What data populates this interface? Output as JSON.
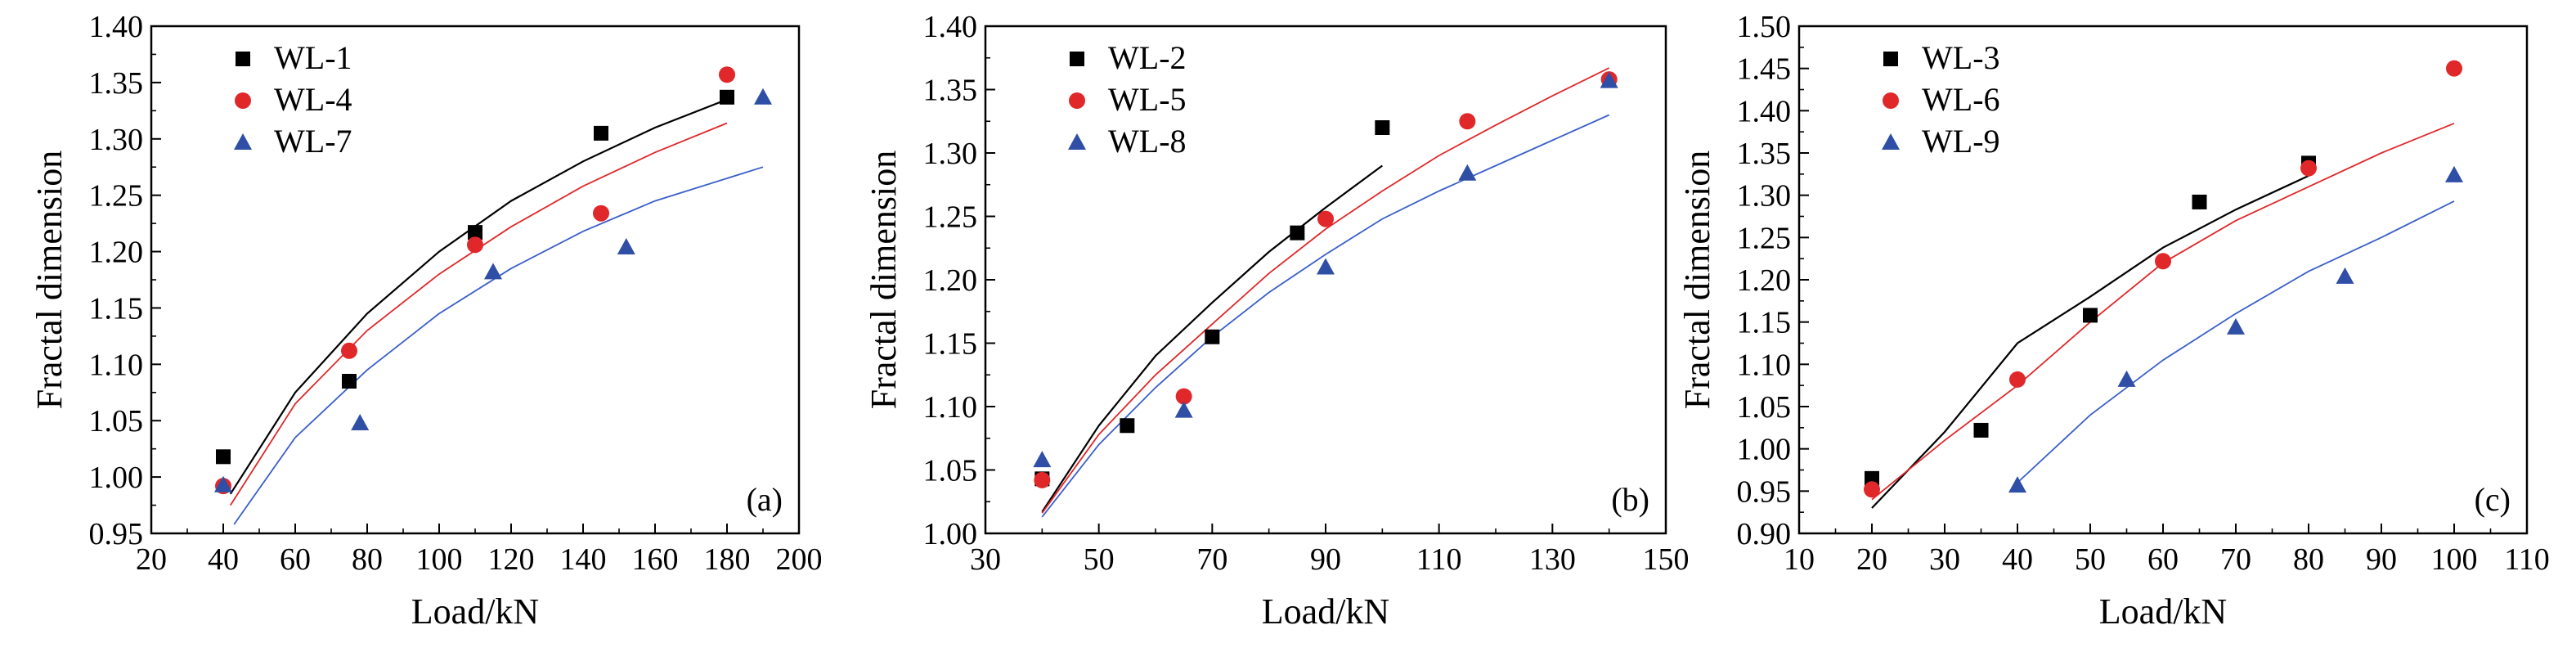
{
  "colors": {
    "series_black": "#000000",
    "series_red": "#e0282a",
    "series_blue": "#2f4fa6",
    "fit_black": "#000000",
    "fit_red": "#e0282a",
    "fit_blue": "#3a5fc8"
  },
  "chart_data": [
    {
      "type": "scatter",
      "panel": "(a)",
      "xlabel": "Load/kN",
      "ylabel": "Fractal dimension",
      "xlim": [
        20,
        200
      ],
      "ylim": [
        0.95,
        1.4
      ],
      "xticks": [
        "20",
        "40",
        "60",
        "80",
        "100",
        "120",
        "140",
        "160",
        "180",
        "200"
      ],
      "yticks": [
        "0.95",
        "1.00",
        "1.05",
        "1.10",
        "1.15",
        "1.20",
        "1.25",
        "1.30",
        "1.35",
        "1.40"
      ],
      "legend_position": "top-left",
      "series": [
        {
          "name": "WL-1",
          "marker": "square",
          "color": "#000000",
          "x": [
            40,
            75,
            110,
            145,
            180
          ],
          "y": [
            1.018,
            1.085,
            1.217,
            1.305,
            1.337
          ],
          "fit": {
            "x": [
              42,
              60,
              80,
              100,
              120,
              140,
              160,
              180
            ],
            "y": [
              0.985,
              1.075,
              1.145,
              1.2,
              1.245,
              1.28,
              1.31,
              1.335
            ]
          }
        },
        {
          "name": "WL-4",
          "marker": "circle",
          "color": "#e0282a",
          "x": [
            40,
            75,
            110,
            145,
            180
          ],
          "y": [
            0.992,
            1.112,
            1.206,
            1.234,
            1.357
          ],
          "fit": {
            "x": [
              42,
              60,
              80,
              100,
              120,
              140,
              160,
              180
            ],
            "y": [
              0.975,
              1.065,
              1.13,
              1.18,
              1.222,
              1.258,
              1.288,
              1.314
            ]
          }
        },
        {
          "name": "WL-7",
          "marker": "triangle",
          "color": "#2f4fa6",
          "x": [
            40,
            78,
            115,
            152,
            190
          ],
          "y": [
            0.993,
            1.048,
            1.182,
            1.204,
            1.337
          ],
          "fit": {
            "x": [
              43,
              60,
              80,
              100,
              120,
              140,
              160,
              190
            ],
            "y": [
              0.958,
              1.035,
              1.095,
              1.145,
              1.185,
              1.218,
              1.245,
              1.275
            ]
          }
        }
      ]
    },
    {
      "type": "scatter",
      "panel": "(b)",
      "xlabel": "Load/kN",
      "ylabel": "Fractal dimension",
      "xlim": [
        30,
        150
      ],
      "ylim": [
        1.0,
        1.4
      ],
      "xticks": [
        "30",
        "50",
        "70",
        "90",
        "110",
        "130",
        "150"
      ],
      "yticks": [
        "1.00",
        "1.05",
        "1.10",
        "1.15",
        "1.20",
        "1.25",
        "1.30",
        "1.35",
        "1.40"
      ],
      "legend_position": "top-left",
      "series": [
        {
          "name": "WL-2",
          "marker": "square",
          "color": "#000000",
          "x": [
            40,
            55,
            70,
            85,
            100
          ],
          "y": [
            1.043,
            1.085,
            1.155,
            1.237,
            1.32
          ],
          "fit": {
            "x": [
              40,
              50,
              60,
              70,
              80,
              90,
              100
            ],
            "y": [
              1.017,
              1.085,
              1.14,
              1.182,
              1.222,
              1.257,
              1.29
            ]
          }
        },
        {
          "name": "WL-5",
          "marker": "circle",
          "color": "#e0282a",
          "x": [
            40,
            65,
            90,
            115,
            140
          ],
          "y": [
            1.042,
            1.108,
            1.248,
            1.325,
            1.358
          ],
          "fit": {
            "x": [
              40,
              50,
              60,
              70,
              80,
              90,
              100,
              110,
              120,
              130,
              140
            ],
            "y": [
              1.016,
              1.078,
              1.125,
              1.165,
              1.205,
              1.24,
              1.27,
              1.298,
              1.322,
              1.345,
              1.367
            ]
          }
        },
        {
          "name": "WL-8",
          "marker": "triangle",
          "color": "#2f4fa6",
          "x": [
            40,
            65,
            90,
            115,
            140
          ],
          "y": [
            1.058,
            1.097,
            1.21,
            1.284,
            1.357
          ],
          "fit": {
            "x": [
              40,
              50,
              60,
              70,
              80,
              90,
              100,
              110,
              120,
              130,
              140
            ],
            "y": [
              1.013,
              1.07,
              1.115,
              1.155,
              1.19,
              1.22,
              1.248,
              1.27,
              1.29,
              1.31,
              1.33
            ]
          }
        }
      ]
    },
    {
      "type": "scatter",
      "panel": "(c)",
      "xlabel": "Load/kN",
      "ylabel": "Fractal dimension",
      "xlim": [
        10,
        110
      ],
      "ylim": [
        0.9,
        1.5
      ],
      "xticks": [
        "10",
        "20",
        "30",
        "40",
        "50",
        "60",
        "70",
        "80",
        "90",
        "100",
        "110"
      ],
      "yticks": [
        "0.90",
        "0.95",
        "1.00",
        "1.05",
        "1.10",
        "1.15",
        "1.20",
        "1.25",
        "1.30",
        "1.35",
        "1.40",
        "1.45",
        "1.50"
      ],
      "legend_position": "top-left",
      "series": [
        {
          "name": "WL-3",
          "marker": "square",
          "color": "#000000",
          "x": [
            20,
            35,
            50,
            65,
            80
          ],
          "y": [
            0.965,
            1.022,
            1.158,
            1.292,
            1.338
          ],
          "fit": {
            "x": [
              20,
              30,
              40,
              50,
              60,
              70,
              80
            ],
            "y": [
              0.93,
              1.02,
              1.125,
              1.18,
              1.238,
              1.283,
              1.323
            ]
          }
        },
        {
          "name": "WL-6",
          "marker": "circle",
          "color": "#e0282a",
          "x": [
            20,
            40,
            60,
            80,
            100
          ],
          "y": [
            0.952,
            1.082,
            1.222,
            1.332,
            1.45
          ],
          "fit": {
            "x": [
              20,
              30,
              40,
              50,
              60,
              70,
              80,
              90,
              100
            ],
            "y": [
              0.94,
              1.01,
              1.075,
              1.15,
              1.22,
              1.27,
              1.31,
              1.35,
              1.385
            ]
          }
        },
        {
          "name": "WL-9",
          "marker": "triangle",
          "color": "#2f4fa6",
          "x": [
            40,
            55,
            70,
            85,
            100
          ],
          "y": [
            0.957,
            1.082,
            1.144,
            1.204,
            1.324
          ],
          "fit": {
            "x": [
              40,
              50,
              60,
              70,
              80,
              90,
              100
            ],
            "y": [
              0.96,
              1.04,
              1.105,
              1.16,
              1.21,
              1.25,
              1.293
            ]
          }
        }
      ]
    }
  ]
}
